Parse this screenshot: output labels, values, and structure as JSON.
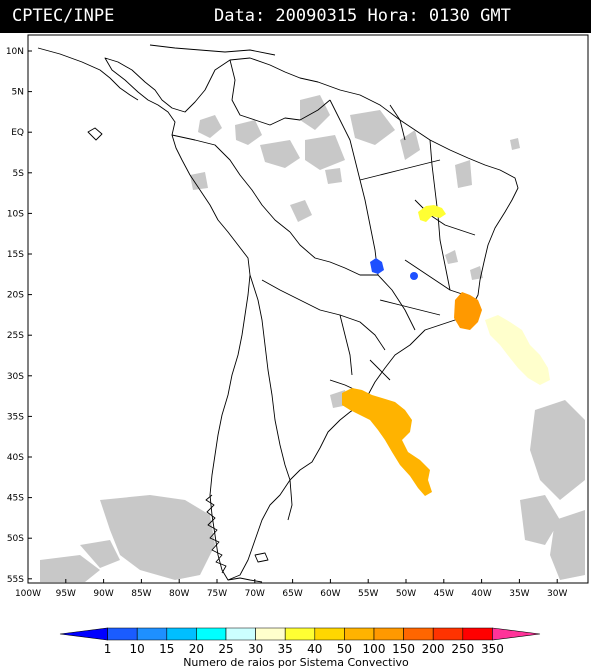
{
  "header": {
    "left": "CPTEC/INPE",
    "right": "Data: 20090315 Hora: 0130 GMT"
  },
  "map": {
    "lon_range": [
      -100,
      -27
    ],
    "lat_range": [
      -56,
      12
    ],
    "lat_labels": [
      "10N",
      "5N",
      "EQ",
      "5S",
      "10S",
      "15S",
      "20S",
      "25S",
      "30S",
      "35S",
      "40S",
      "45S",
      "50S",
      "55S"
    ],
    "lon_labels": [
      "100W",
      "95W",
      "90W",
      "85W",
      "80W",
      "75W",
      "70W",
      "65W",
      "60W",
      "55W",
      "50W",
      "45W",
      "40W",
      "35W",
      "30W"
    ]
  },
  "colorbar": {
    "labels": [
      "1",
      "10",
      "15",
      "20",
      "25",
      "30",
      "35",
      "40",
      "50",
      "100",
      "150",
      "200",
      "250",
      "350"
    ],
    "colors": [
      "#0000ff",
      "#1a5cff",
      "#1e90ff",
      "#00bfff",
      "#00ffff",
      "#ccffff",
      "#ffffcc",
      "#ffff33",
      "#ffd700",
      "#ffb300",
      "#ff9900",
      "#ff6600",
      "#ff3300",
      "#ff0000",
      "#ff3399"
    ],
    "caption": "Numero de raios por Sistema Convectivo"
  },
  "overlay": {
    "cloud_color": "#c8c8c8",
    "systems": [
      {
        "intensity_label": "100",
        "color": "#ffb300"
      },
      {
        "intensity_label": "150",
        "color": "#ff9900"
      },
      {
        "intensity_label": "30",
        "color": "#ffffcc"
      },
      {
        "intensity_label": "40",
        "color": "#ffff33"
      },
      {
        "intensity_label": "1",
        "color": "#1e50ff"
      }
    ]
  }
}
